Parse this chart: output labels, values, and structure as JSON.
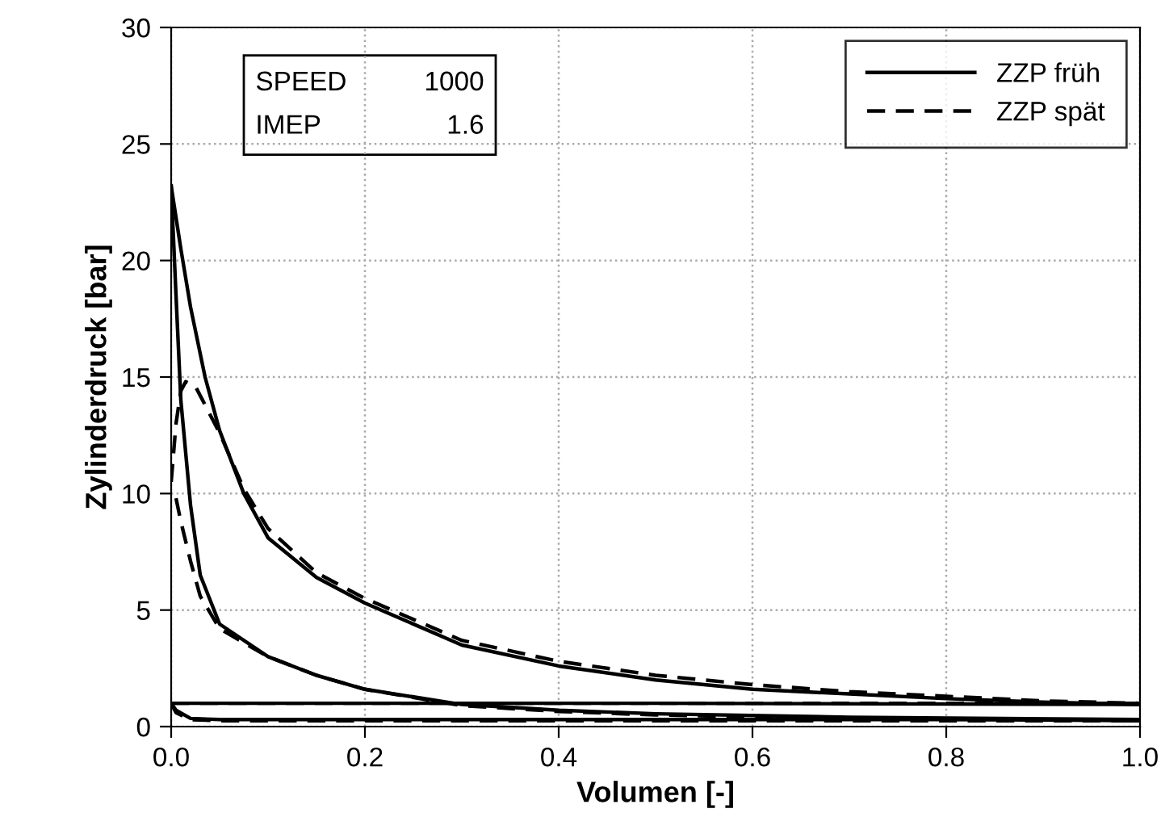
{
  "chart_data": {
    "type": "line",
    "xlabel": "Volumen [-]",
    "ylabel": "Zylinderdruck [bar]",
    "xlim": [
      0,
      1
    ],
    "ylim": [
      0,
      30
    ],
    "xticks": [
      {
        "value": 0,
        "label": "0.0"
      },
      0.2,
      0.4,
      0.6,
      0.8,
      {
        "value": 1,
        "label": "1.0"
      }
    ],
    "yticks": [
      0,
      5,
      10,
      15,
      20,
      25,
      30
    ],
    "grid": true,
    "legend": "top right",
    "annotations": [
      "SPEED 1000",
      "IMEP 1.6"
    ],
    "series": [
      {
        "name": "ZZP früh",
        "color": "#000000",
        "line_style": "solid",
        "x": [
          0,
          0.01,
          0.02,
          0.035,
          0.05,
          0.075,
          0.1,
          0.15,
          0.2,
          0.3,
          0.4,
          0.5,
          0.6,
          0.7,
          0.8,
          0.9,
          1.0
        ],
        "values": [
          23.2,
          20.5,
          18.0,
          15.0,
          12.7,
          10.0,
          8.1,
          6.4,
          5.3,
          3.5,
          2.6,
          2.0,
          1.6,
          1.4,
          1.2,
          1.05,
          0.95
        ]
      },
      {
        "color": "#000000",
        "line_style": "solid",
        "x": [
          0,
          0.5,
          1.0
        ],
        "values": [
          1.0,
          1.0,
          0.95
        ]
      },
      {
        "color": "#000000",
        "line_style": "solid",
        "x": [
          0,
          0.005,
          0.02,
          0.05,
          0.1,
          0.3,
          0.5,
          0.7,
          1.0
        ],
        "values": [
          1.0,
          0.7,
          0.35,
          0.3,
          0.3,
          0.3,
          0.3,
          0.3,
          0.3
        ]
      },
      {
        "color": "#000000",
        "line_style": "solid",
        "x": [
          0,
          0.005,
          0.01,
          0.02,
          0.03,
          0.05,
          0.1,
          0.15,
          0.2,
          0.3,
          0.4,
          0.5,
          0.7,
          1.0
        ],
        "values": [
          23.2,
          18.5,
          14.0,
          9.5,
          6.5,
          4.4,
          3.0,
          2.2,
          1.6,
          0.95,
          0.7,
          0.55,
          0.4,
          0.3
        ]
      },
      {
        "name": "ZZP spät",
        "color": "#000000",
        "line_style": "dashed",
        "x": [
          0,
          0.005,
          0.01,
          0.015,
          0.025,
          0.05,
          0.075,
          0.1,
          0.15,
          0.2,
          0.3,
          0.4,
          0.5,
          0.6,
          0.7,
          0.8,
          0.9,
          1.0
        ],
        "values": [
          10.5,
          13.0,
          14.4,
          14.8,
          14.6,
          12.6,
          10.2,
          8.5,
          6.6,
          5.5,
          3.7,
          2.8,
          2.2,
          1.8,
          1.5,
          1.3,
          1.1,
          1.0
        ]
      },
      {
        "color": "#000000",
        "line_style": "dashed",
        "x": [
          0,
          0.5,
          1.0
        ],
        "values": [
          1.0,
          1.0,
          1.0
        ]
      },
      {
        "color": "#000000",
        "line_style": "dashed",
        "x": [
          0,
          0.005,
          0.02,
          0.05,
          0.1,
          0.3,
          0.5,
          0.7,
          1.0
        ],
        "values": [
          1.0,
          0.6,
          0.3,
          0.25,
          0.25,
          0.25,
          0.25,
          0.25,
          0.25
        ]
      },
      {
        "color": "#000000",
        "line_style": "dashed",
        "x": [
          0.005,
          0.01,
          0.02,
          0.03,
          0.05,
          0.1,
          0.15,
          0.2,
          0.3,
          0.4,
          0.5,
          0.7,
          1.0
        ],
        "values": [
          9.8,
          8.8,
          7.1,
          5.6,
          4.2,
          3.0,
          2.2,
          1.6,
          0.9,
          0.65,
          0.5,
          0.35,
          0.25
        ]
      }
    ]
  }
}
